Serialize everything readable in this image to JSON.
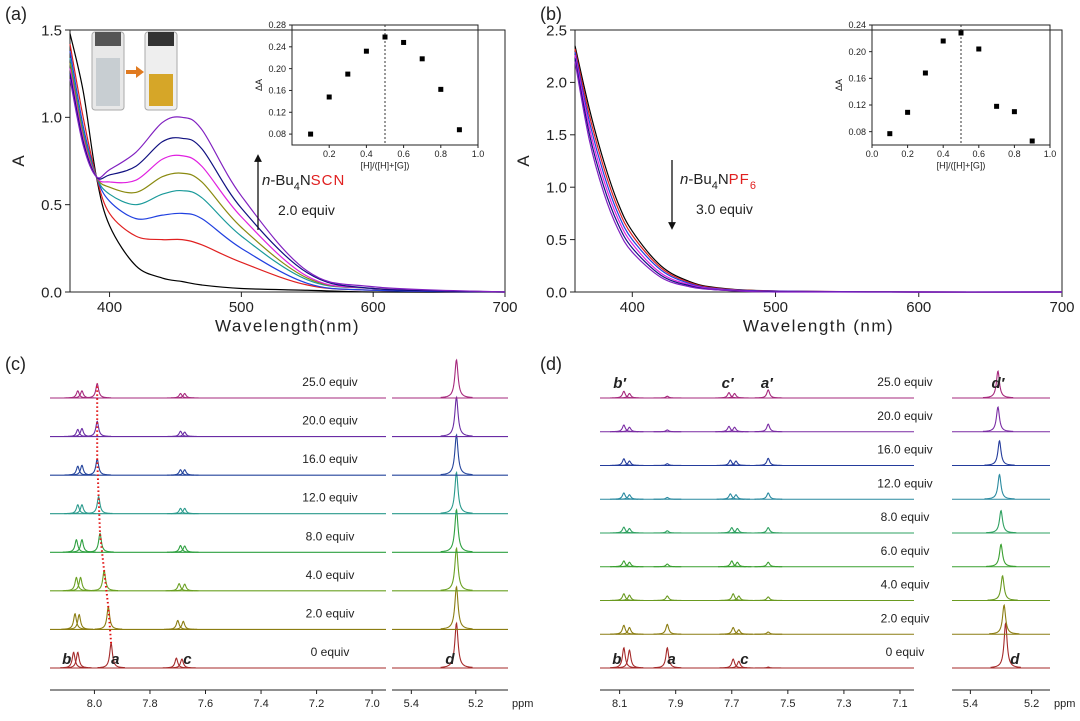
{
  "chart_data": [
    {
      "type": "line",
      "panel_label": "(a)",
      "x_label": "Wavelength(nm)",
      "y_label": "A",
      "xlim": [
        370,
        700
      ],
      "xticks": [
        400,
        500,
        600,
        700
      ],
      "ylim": [
        0,
        1.5
      ],
      "yticks": [
        {
          "value": 0,
          "label": "0.0"
        },
        0.5,
        {
          "value": 1,
          "label": "1.0"
        },
        1.5
      ],
      "x": [
        370,
        380,
        390,
        400,
        420,
        440,
        455,
        470,
        500,
        550,
        600,
        700
      ],
      "series": [
        {
          "color": "#000000",
          "values": [
            1.48,
            1.15,
            0.66,
            0.38,
            0.15,
            0.08,
            0.06,
            0.04,
            0.02,
            0.01,
            0,
            0
          ]
        },
        {
          "color": "#e02020",
          "values": [
            1.42,
            1.0,
            0.66,
            0.45,
            0.32,
            0.3,
            0.3,
            0.27,
            0.17,
            0.04,
            0.01,
            0
          ]
        },
        {
          "color": "#2040e0",
          "values": [
            1.38,
            0.95,
            0.66,
            0.52,
            0.42,
            0.44,
            0.45,
            0.42,
            0.25,
            0.05,
            0.01,
            0
          ]
        },
        {
          "color": "#1a9a9a",
          "values": [
            1.34,
            0.92,
            0.66,
            0.56,
            0.5,
            0.56,
            0.58,
            0.54,
            0.32,
            0.07,
            0.02,
            0
          ]
        },
        {
          "color": "#8a8a10",
          "values": [
            1.31,
            0.9,
            0.66,
            0.6,
            0.57,
            0.66,
            0.68,
            0.63,
            0.37,
            0.08,
            0.02,
            0
          ]
        },
        {
          "color": "#e020e0",
          "values": [
            1.28,
            0.88,
            0.66,
            0.63,
            0.64,
            0.76,
            0.78,
            0.72,
            0.43,
            0.09,
            0.02,
            0
          ]
        },
        {
          "color": "#101080",
          "values": [
            1.25,
            0.86,
            0.66,
            0.67,
            0.72,
            0.86,
            0.88,
            0.82,
            0.48,
            0.11,
            0.02,
            0
          ]
        },
        {
          "color": "#8020c0",
          "values": [
            1.22,
            0.84,
            0.66,
            0.7,
            0.8,
            0.97,
            1.0,
            0.93,
            0.55,
            0.12,
            0.03,
            0
          ]
        }
      ],
      "annotation": {
        "parts": [
          "n",
          "-Bu",
          "4",
          "N",
          "SCN"
        ],
        "amount": "2.0 equiv"
      }
    },
    {
      "type": "scatter",
      "x_label": "[H]/([H]+[G])",
      "y_label": "ΔA",
      "xlim": [
        0,
        1
      ],
      "xticks": [
        0.2,
        0.4,
        0.6,
        0.8,
        {
          "value": 1,
          "label": "1.0"
        }
      ],
      "ylim": [
        0.06,
        0.28
      ],
      "yticks": [
        0.08,
        0.12,
        0.16,
        {
          "value": 0.2,
          "label": "0.20"
        },
        0.24,
        0.28
      ],
      "x": [
        0.1,
        0.2,
        0.3,
        0.4,
        0.5,
        0.6,
        0.7,
        0.8,
        0.9
      ],
      "values": [
        0.08,
        0.148,
        0.19,
        0.232,
        0.258,
        0.248,
        0.218,
        0.162,
        0.088
      ],
      "vline": 0.5,
      "color": "#000000"
    },
    {
      "type": "line",
      "panel_label": "(b)",
      "x_label": "Wavelength (nm)",
      "y_label": "A",
      "xlim": [
        360,
        700
      ],
      "xticks": [
        400,
        500,
        600,
        700
      ],
      "ylim": [
        0,
        2.5
      ],
      "yticks": [
        {
          "value": 0,
          "label": "0.0"
        },
        0.5,
        {
          "value": 1,
          "label": "1.0"
        },
        1.5,
        {
          "value": 2,
          "label": "2.0"
        },
        2.5
      ],
      "x": [
        360,
        370,
        380,
        390,
        400,
        420,
        440,
        460,
        500,
        600,
        700
      ],
      "series": [
        {
          "color": "#000000",
          "values": [
            2.35,
            1.75,
            1.25,
            0.85,
            0.58,
            0.25,
            0.1,
            0.04,
            0.01,
            0,
            0
          ]
        },
        {
          "color": "#e02020",
          "values": [
            2.32,
            1.69,
            1.19,
            0.8,
            0.54,
            0.23,
            0.09,
            0.035,
            0.01,
            0,
            0
          ]
        },
        {
          "color": "#2040e0",
          "values": [
            2.29,
            1.63,
            1.13,
            0.75,
            0.5,
            0.21,
            0.08,
            0.03,
            0.008,
            0,
            0
          ]
        },
        {
          "color": "#e020e0",
          "values": [
            2.26,
            1.57,
            1.07,
            0.7,
            0.46,
            0.18,
            0.07,
            0.025,
            0.005,
            0,
            0
          ]
        },
        {
          "color": "#101080",
          "values": [
            2.23,
            1.51,
            1.01,
            0.65,
            0.42,
            0.16,
            0.06,
            0.02,
            0.003,
            0,
            0
          ]
        },
        {
          "color": "#8020c0",
          "values": [
            2.2,
            1.45,
            0.95,
            0.6,
            0.38,
            0.14,
            0.05,
            0.02,
            0,
            0,
            0
          ]
        }
      ],
      "annotation": {
        "parts": [
          "n",
          "-Bu",
          "4",
          "N",
          "PF",
          "6"
        ],
        "amount": "3.0 equiv"
      }
    },
    {
      "type": "scatter",
      "x_label": "[H]/([H]+[G])",
      "y_label": "ΔA",
      "xlim": [
        0,
        1
      ],
      "xticks": [
        {
          "value": 0,
          "label": "0.0"
        },
        0.2,
        0.4,
        0.6,
        0.8,
        {
          "value": 1,
          "label": "1.0"
        }
      ],
      "ylim": [
        0.06,
        0.24
      ],
      "yticks": [
        0.08,
        0.12,
        0.16,
        {
          "value": 0.2,
          "label": "0.20"
        },
        0.24
      ],
      "x": [
        0.1,
        0.2,
        0.3,
        0.4,
        0.5,
        0.6,
        0.7,
        0.8,
        0.9
      ],
      "values": [
        0.077,
        0.109,
        0.168,
        0.216,
        0.228,
        0.204,
        0.118,
        0.11,
        0.066
      ],
      "vline": 0.5,
      "color": "#000000"
    },
    {
      "type": "nmr",
      "panel_label": "(c)",
      "x_label": "ppm",
      "segments": [
        {
          "xlim": [
            8.16,
            6.95
          ],
          "xticks": [
            {
              "value": 8,
              "label": "8.0"
            },
            7.8,
            7.6,
            7.4,
            7.2,
            {
              "value": 7,
              "label": "7.0"
            }
          ]
        },
        {
          "xlim": [
            5.46,
            5.1
          ],
          "xticks": [
            5.4,
            5.2
          ]
        }
      ],
      "traces": [
        {
          "label": "0 equiv",
          "color": "#a52a2a",
          "ppm": [
            8.075,
            8.06,
            7.94,
            7.705,
            7.685,
            5.26
          ],
          "heights": [
            0.35,
            0.35,
            0.55,
            0.22,
            0.2,
            1.0
          ]
        },
        {
          "label": "2.0 equiv",
          "color": "#8b7d12",
          "ppm": [
            8.07,
            8.055,
            7.95,
            7.7,
            7.68,
            5.26
          ],
          "heights": [
            0.35,
            0.33,
            0.5,
            0.2,
            0.18,
            0.95
          ]
        },
        {
          "label": "4.0 equiv",
          "color": "#6aa022",
          "ppm": [
            8.065,
            8.05,
            7.965,
            7.695,
            7.675,
            5.26
          ],
          "heights": [
            0.3,
            0.3,
            0.45,
            0.16,
            0.15,
            0.95
          ]
        },
        {
          "label": "8.0 equiv",
          "color": "#2ea040",
          "ppm": [
            8.065,
            8.045,
            7.98,
            7.69,
            7.675,
            5.26
          ],
          "heights": [
            0.28,
            0.28,
            0.42,
            0.15,
            0.14,
            0.95
          ]
        },
        {
          "label": "12.0 equiv",
          "color": "#2a9a8c",
          "ppm": [
            8.06,
            8.045,
            7.985,
            7.69,
            7.675,
            5.26
          ],
          "heights": [
            0.2,
            0.2,
            0.38,
            0.12,
            0.12,
            0.92
          ]
        },
        {
          "label": "16.0 equiv",
          "color": "#24449c",
          "ppm": [
            8.06,
            8.045,
            7.99,
            7.69,
            7.675,
            5.26
          ],
          "heights": [
            0.2,
            0.22,
            0.36,
            0.12,
            0.12,
            0.9
          ]
        },
        {
          "label": "20.0 equiv",
          "color": "#6a2ca4",
          "ppm": [
            8.06,
            8.045,
            7.99,
            7.69,
            7.675,
            5.26
          ],
          "heights": [
            0.16,
            0.18,
            0.34,
            0.12,
            0.1,
            0.88
          ]
        },
        {
          "label": "25.0 equiv",
          "color": "#a6287c",
          "ppm": [
            8.06,
            8.045,
            7.99,
            7.69,
            7.675,
            5.26
          ],
          "heights": [
            0.16,
            0.16,
            0.32,
            0.1,
            0.1,
            0.85
          ]
        }
      ],
      "peak_labels": [
        "b",
        "a",
        "c",
        "d"
      ]
    },
    {
      "type": "nmr",
      "panel_label": "(d)",
      "x_label": "ppm",
      "segments": [
        {
          "xlim": [
            8.17,
            7.05
          ],
          "xticks": [
            8.1,
            7.9,
            7.7,
            7.5,
            7.3,
            7.1
          ]
        },
        {
          "xlim": [
            5.46,
            5.14
          ],
          "xticks": [
            5.4,
            5.2
          ]
        }
      ],
      "traces": [
        {
          "label": "0 equiv",
          "color": "#a52a2a",
          "ppm": [
            8.085,
            8.065,
            7.93,
            7.695,
            7.675,
            7.57,
            5.285
          ],
          "heights": [
            0.45,
            0.4,
            0.45,
            0.2,
            0.15,
            0.02,
            1.0
          ]
        },
        {
          "label": "2.0 equiv",
          "color": "#8b7d12",
          "ppm": [
            8.085,
            8.065,
            7.93,
            7.695,
            7.675,
            7.57,
            5.29
          ],
          "heights": [
            0.2,
            0.15,
            0.22,
            0.15,
            0.1,
            0.05,
            0.65
          ]
        },
        {
          "label": "4.0 equiv",
          "color": "#6a9a20",
          "ppm": [
            8.085,
            8.065,
            7.93,
            7.695,
            7.675,
            7.57,
            5.295
          ],
          "heights": [
            0.15,
            0.12,
            0.1,
            0.15,
            0.1,
            0.08,
            0.55
          ]
        },
        {
          "label": "6.0 equiv",
          "color": "#3aa030",
          "ppm": [
            8.085,
            8.065,
            7.93,
            7.7,
            7.68,
            7.57,
            5.3
          ],
          "heights": [
            0.13,
            0.1,
            0.06,
            0.13,
            0.1,
            0.1,
            0.5
          ]
        },
        {
          "label": "8.0 equiv",
          "color": "#2ea060",
          "ppm": [
            8.085,
            8.065,
            7.93,
            7.7,
            7.68,
            7.57,
            5.3
          ],
          "heights": [
            0.13,
            0.1,
            0.05,
            0.12,
            0.1,
            0.12,
            0.5
          ]
        },
        {
          "label": "12.0 equiv",
          "color": "#2a8aa0",
          "ppm": [
            8.085,
            8.065,
            7.93,
            7.705,
            7.685,
            7.57,
            5.305
          ],
          "heights": [
            0.14,
            0.1,
            0.04,
            0.12,
            0.1,
            0.14,
            0.55
          ]
        },
        {
          "label": "16.0 equiv",
          "color": "#243c9c",
          "ppm": [
            8.085,
            8.065,
            7.93,
            7.705,
            7.685,
            7.57,
            5.305
          ],
          "heights": [
            0.15,
            0.1,
            0.04,
            0.12,
            0.1,
            0.16,
            0.55
          ]
        },
        {
          "label": "20.0 equiv",
          "color": "#7a2ca4",
          "ppm": [
            8.085,
            8.065,
            7.93,
            7.71,
            7.69,
            7.57,
            5.31
          ],
          "heights": [
            0.15,
            0.1,
            0.04,
            0.12,
            0.1,
            0.17,
            0.55
          ]
        },
        {
          "label": "25.0 equiv",
          "color": "#a6287c",
          "ppm": [
            8.085,
            8.065,
            7.93,
            7.71,
            7.69,
            7.57,
            5.31
          ],
          "heights": [
            0.15,
            0.1,
            0.04,
            0.12,
            0.1,
            0.18,
            0.6
          ]
        }
      ],
      "peak_labels": [
        "b",
        "a",
        "c",
        "d"
      ],
      "top_peak_labels": [
        "b′",
        "c′",
        "a′",
        "d′"
      ]
    }
  ]
}
